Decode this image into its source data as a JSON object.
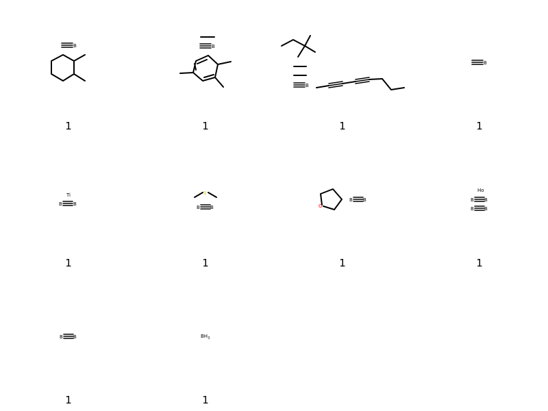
{
  "grid": {
    "molecules": [
      {
        "legend": "1",
        "atoms": [
          "B"
        ]
      },
      {
        "legend": "1",
        "atoms": [
          "B"
        ]
      },
      {
        "legend": "1",
        "atoms": [
          "B"
        ]
      },
      {
        "legend": "1",
        "atoms": [
          "B"
        ]
      },
      {
        "legend": "1",
        "atoms": [
          "Ti",
          "B",
          "B"
        ]
      },
      {
        "legend": "1",
        "atoms": [
          "S",
          "B",
          "B"
        ]
      },
      {
        "legend": "1",
        "atoms": [
          "O",
          "B",
          "B"
        ]
      },
      {
        "legend": "1",
        "atoms": [
          "Ho",
          "B",
          "B",
          "B",
          "B"
        ]
      },
      {
        "legend": "1",
        "atoms": [
          "B",
          "B"
        ]
      },
      {
        "legend": "1",
        "atoms": [
          "BH",
          "3"
        ]
      }
    ]
  }
}
